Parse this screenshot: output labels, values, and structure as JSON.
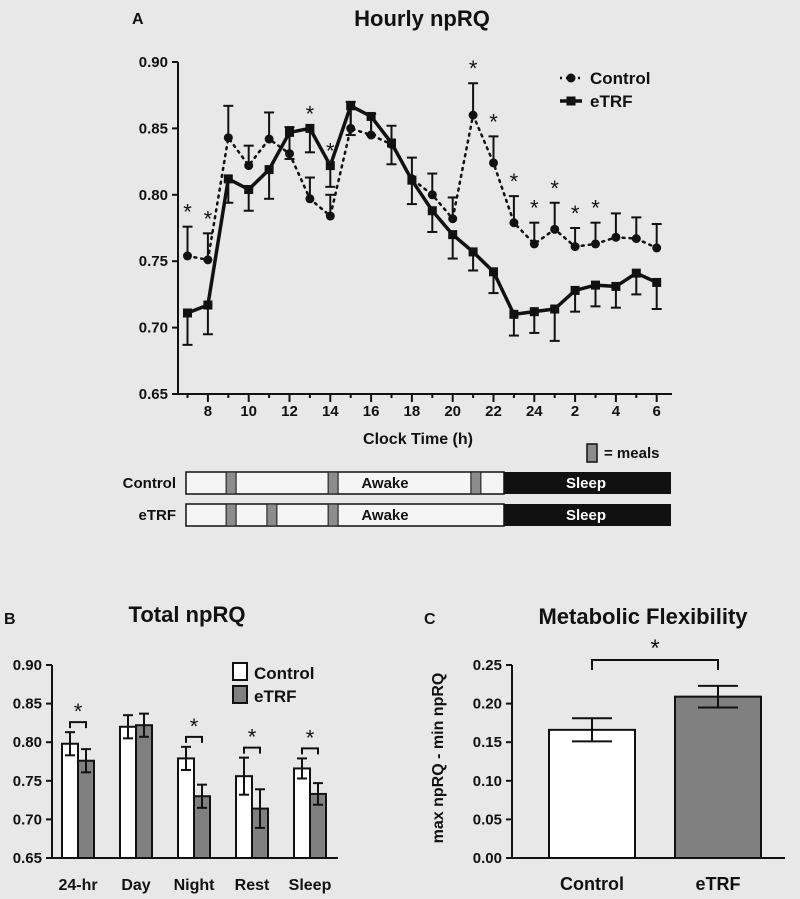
{
  "colors": {
    "background": "#e8e8e8",
    "ink": "#111111",
    "control_bar": "#ffffff",
    "etrf_bar": "#808080",
    "meal": "#8c8c8c",
    "sleep": "#111111"
  },
  "chart_data": [
    {
      "panel": "A",
      "type": "line",
      "title": "Hourly npRQ",
      "xlabel": "Clock Time (h)",
      "ylabel": "",
      "ylim": [
        0.65,
        0.9
      ],
      "y_ticks": [
        "0.65",
        "0.70",
        "0.75",
        "0.80",
        "0.85",
        "0.90"
      ],
      "x_tick_labels": [
        "8",
        "10",
        "12",
        "14",
        "16",
        "18",
        "20",
        "22",
        "24",
        "2",
        "4",
        "6"
      ],
      "x": [
        7,
        8,
        9,
        10,
        11,
        12,
        13,
        14,
        15,
        16,
        17,
        18,
        19,
        20,
        21,
        22,
        23,
        24,
        25,
        26,
        27,
        28,
        29,
        30
      ],
      "series": [
        {
          "name": "Control",
          "style": "dotted-circle",
          "values": [
            0.754,
            0.751,
            0.843,
            0.822,
            0.842,
            0.831,
            0.797,
            0.784,
            0.85,
            0.845,
            0.838,
            0.812,
            0.8,
            0.782,
            0.86,
            0.824,
            0.779,
            0.763,
            0.774,
            0.761,
            0.763,
            0.768,
            0.767,
            0.76
          ],
          "errors": [
            0.022,
            0.02,
            0.024,
            0.015,
            0.02,
            0.02,
            0.016,
            0.016,
            0.02,
            0.016,
            0.014,
            0.016,
            0.016,
            0.016,
            0.024,
            0.02,
            0.02,
            0.016,
            0.02,
            0.014,
            0.016,
            0.018,
            0.016,
            0.018
          ]
        },
        {
          "name": "eTRF",
          "style": "solid-square",
          "values": [
            0.711,
            0.717,
            0.812,
            0.804,
            0.819,
            0.847,
            0.85,
            0.822,
            0.867,
            0.859,
            0.839,
            0.811,
            0.788,
            0.77,
            0.757,
            0.742,
            0.71,
            0.712,
            0.714,
            0.728,
            0.732,
            0.731,
            0.741,
            0.734
          ],
          "errors": [
            0.024,
            0.022,
            0.018,
            0.016,
            0.022,
            0.02,
            0.018,
            0.016,
            0.022,
            0.014,
            0.016,
            0.018,
            0.016,
            0.018,
            0.014,
            0.016,
            0.016,
            0.016,
            0.024,
            0.016,
            0.016,
            0.016,
            0.016,
            0.02
          ]
        }
      ],
      "significance_x": [
        7,
        8,
        13,
        14,
        21,
        22,
        23,
        24,
        25,
        26,
        27
      ],
      "significance_label": "*",
      "legend": [
        "Control",
        "eTRF"
      ],
      "legend_position": "top-right",
      "meal_key_label": "= meals",
      "timelines": [
        {
          "label": "Control",
          "awake_label": "Awake",
          "sleep_label": "Sleep",
          "meals": [
            8,
            13,
            20
          ]
        },
        {
          "label": "eTRF",
          "awake_label": "Awake",
          "sleep_label": "Sleep",
          "meals": [
            8,
            10,
            13
          ]
        }
      ]
    },
    {
      "panel": "B",
      "type": "bar",
      "title": "Total npRQ",
      "ylim": [
        0.65,
        0.9
      ],
      "y_ticks": [
        "0.65",
        "0.70",
        "0.75",
        "0.80",
        "0.85",
        "0.90"
      ],
      "categories": [
        "24-hr",
        "Day",
        "Night",
        "Rest",
        "Sleep"
      ],
      "series": [
        {
          "name": "Control",
          "values": [
            0.798,
            0.82,
            0.779,
            0.756,
            0.766
          ],
          "errors": [
            0.015,
            0.015,
            0.015,
            0.024,
            0.013
          ]
        },
        {
          "name": "eTRF",
          "values": [
            0.776,
            0.822,
            0.73,
            0.714,
            0.733
          ],
          "errors": [
            0.015,
            0.015,
            0.015,
            0.025,
            0.014
          ]
        }
      ],
      "significant": [
        true,
        false,
        true,
        true,
        true
      ],
      "significance_label": "*",
      "legend": [
        "Control",
        "eTRF"
      ],
      "legend_position": "top-right"
    },
    {
      "panel": "C",
      "type": "bar",
      "title": "Metabolic Flexibility",
      "ylabel": "max npRQ - min npRQ",
      "ylim": [
        0.0,
        0.25
      ],
      "y_ticks": [
        "0.00",
        "0.05",
        "0.10",
        "0.15",
        "0.20",
        "0.25"
      ],
      "categories": [
        "Control",
        "eTRF"
      ],
      "values": [
        0.166,
        0.209
      ],
      "errors": [
        0.015,
        0.014
      ],
      "significance_label": "*"
    }
  ]
}
